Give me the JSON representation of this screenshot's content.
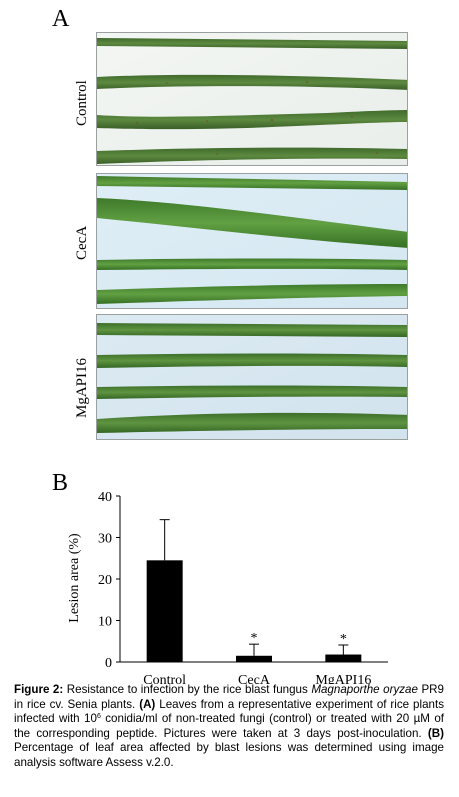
{
  "panel_a": {
    "letter": "A",
    "rows": [
      {
        "label": "Control"
      },
      {
        "label": "CecA"
      },
      {
        "label": "MgAPI16"
      }
    ]
  },
  "panel_b": {
    "letter": "B"
  },
  "chart_data": {
    "type": "bar",
    "categories": [
      "Control",
      "CecA",
      "MgAPI16"
    ],
    "values": [
      24.5,
      1.5,
      1.8
    ],
    "errors": [
      9.8,
      2.8,
      2.3
    ],
    "significance": [
      "",
      "*",
      "*"
    ],
    "ylabel": "Lesion area (%)",
    "ylim": [
      0,
      40
    ],
    "yticks": [
      0,
      10,
      20,
      30,
      40
    ],
    "bar_color": "#000000",
    "grid": false,
    "legend": "none"
  },
  "caption": {
    "label": "Figure 2:",
    "t1": " Resistance to infection by the rice blast fungus ",
    "species": "Magnaporthe oryzae",
    "t2": " PR9 in rice cv. Senia plants. ",
    "a": "(A)",
    "t3": " Leaves from a representative experiment of rice plants infected with 10",
    "sup": "6",
    "t4": " conidia/ml of non-treated fungi (control) or treated with 20 µM of the corresponding peptide. Pictures were taken at 3 days post-inoculation. ",
    "b": "(B)",
    "t5": " Percentage of leaf area affected by blast lesions was determined using image analysis software Assess v.2.0."
  }
}
